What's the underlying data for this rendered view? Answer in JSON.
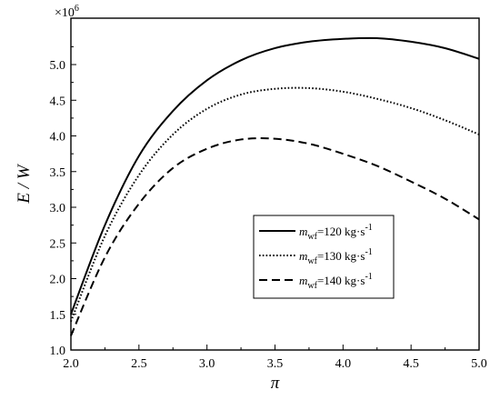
{
  "chart_data": {
    "type": "line",
    "title": "",
    "xlabel": "π",
    "ylabel": "E / W",
    "y_multiplier_label": "×10",
    "y_multiplier_exponent": "6",
    "xlim": [
      2.0,
      5.0
    ],
    "ylim": [
      1.0,
      5.65
    ],
    "x_ticks": [
      2.0,
      2.5,
      3.0,
      3.5,
      4.0,
      4.5,
      5.0
    ],
    "x_tick_labels": [
      "2.0",
      "2.5",
      "3.0",
      "3.5",
      "4.0",
      "4.5",
      "5.0"
    ],
    "y_ticks": [
      1.0,
      1.5,
      2.0,
      2.5,
      3.0,
      3.5,
      4.0,
      4.5,
      5.0
    ],
    "y_tick_labels": [
      "1.0",
      "1.5",
      "2.0",
      "2.5",
      "3.0",
      "3.5",
      "4.0",
      "4.5",
      "5.0"
    ],
    "grid": false,
    "legend_position": "center-right",
    "x": [
      2.0,
      2.25,
      2.5,
      2.75,
      3.0,
      3.25,
      3.5,
      3.75,
      4.0,
      4.25,
      4.5,
      4.75,
      5.0
    ],
    "series": [
      {
        "name_main": "m",
        "name_sub": "wf",
        "name_rest": "=120 kg·s",
        "name_sup": "-1",
        "style": "solid",
        "values": [
          1.5,
          2.75,
          3.72,
          4.35,
          4.78,
          5.06,
          5.23,
          5.32,
          5.36,
          5.37,
          5.32,
          5.23,
          5.08
        ]
      },
      {
        "name_main": "m",
        "name_sub": "wf",
        "name_rest": "=130 kg·s",
        "name_sup": "-1",
        "style": "dotted",
        "values": [
          1.4,
          2.6,
          3.45,
          4.02,
          4.38,
          4.58,
          4.66,
          4.67,
          4.62,
          4.52,
          4.39,
          4.22,
          4.02
        ]
      },
      {
        "name_main": "m",
        "name_sub": "wf",
        "name_rest": "=140 kg·s",
        "name_sup": "-1",
        "style": "dashed",
        "values": [
          1.2,
          2.3,
          3.05,
          3.55,
          3.82,
          3.95,
          3.96,
          3.89,
          3.75,
          3.58,
          3.36,
          3.12,
          2.83
        ]
      }
    ]
  }
}
